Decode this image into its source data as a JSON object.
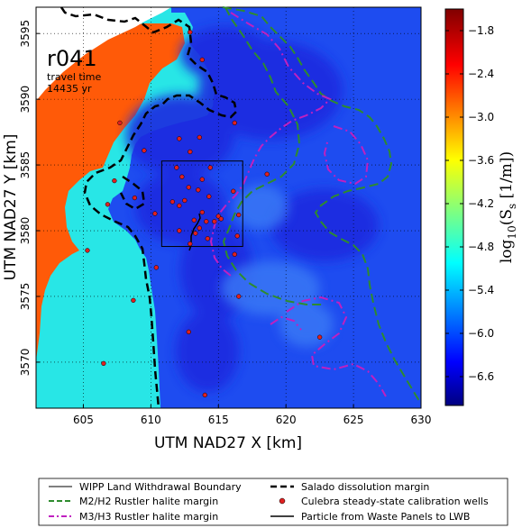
{
  "chart_data": {
    "type": "heatmap",
    "xlabel": "UTM NAD27 X [km]",
    "ylabel": "UTM NAD27 Y [km]",
    "xlim": [
      601.5,
      630
    ],
    "ylim": [
      3566.5,
      3597
    ],
    "xticks": [
      605,
      610,
      615,
      620,
      625,
      630
    ],
    "yticks": [
      3570,
      3575,
      3580,
      3585,
      3590,
      3595
    ],
    "grid": true,
    "realization": "r041",
    "travel_time_label": "travel time",
    "travel_time_value": "14435 yr",
    "colorbar": {
      "label": "log10(Ss [1/m])",
      "label_base": "log",
      "label_sub": "10",
      "label_body": "(S",
      "label_sub2": "s",
      "label_tail": " [1/m])",
      "range": [
        -7.0,
        -1.5
      ],
      "ticks": [
        -1.8,
        -2.4,
        -3.0,
        -3.6,
        -4.2,
        -4.8,
        -5.4,
        -6.0,
        -6.6
      ],
      "tick_labels": [
        "−1.8",
        "−2.4",
        "−3.0",
        "−3.6",
        "−4.2",
        "−4.8",
        "−5.4",
        "−6.0",
        "−6.6"
      ],
      "colormap": "jet"
    },
    "regions": [
      {
        "name": "orange",
        "value": -2.2
      },
      {
        "name": "cyan",
        "value": -5.0
      },
      {
        "name": "dark blue",
        "value": -6.6
      },
      {
        "name": "medium blue",
        "value": -6.1
      }
    ],
    "wipp_boundary": {
      "x": [
        610.8,
        616.8
      ],
      "y": [
        3578.8,
        3585.3
      ]
    },
    "wells": [
      {
        "x": 612.9,
        "y": 3595.1
      },
      {
        "x": 613.8,
        "y": 3593.0
      },
      {
        "x": 616.2,
        "y": 3588.2
      },
      {
        "x": 607.7,
        "y": 3588.2
      },
      {
        "x": 609.5,
        "y": 3586.1
      },
      {
        "x": 612.1,
        "y": 3587.0
      },
      {
        "x": 613.6,
        "y": 3587.1
      },
      {
        "x": 612.9,
        "y": 3586.0
      },
      {
        "x": 611.9,
        "y": 3584.8
      },
      {
        "x": 612.3,
        "y": 3584.1
      },
      {
        "x": 614.4,
        "y": 3584.8
      },
      {
        "x": 613.8,
        "y": 3583.9
      },
      {
        "x": 612.8,
        "y": 3583.3
      },
      {
        "x": 613.5,
        "y": 3583.1
      },
      {
        "x": 612.5,
        "y": 3582.3
      },
      {
        "x": 614.3,
        "y": 3582.6
      },
      {
        "x": 616.1,
        "y": 3583.0
      },
      {
        "x": 611.6,
        "y": 3582.2
      },
      {
        "x": 612.1,
        "y": 3581.9
      },
      {
        "x": 613.8,
        "y": 3581.4
      },
      {
        "x": 615.0,
        "y": 3581.1
      },
      {
        "x": 615.2,
        "y": 3580.9
      },
      {
        "x": 616.5,
        "y": 3581.2
      },
      {
        "x": 613.2,
        "y": 3580.8
      },
      {
        "x": 614.1,
        "y": 3580.7
      },
      {
        "x": 614.7,
        "y": 3580.7
      },
      {
        "x": 613.6,
        "y": 3580.2
      },
      {
        "x": 612.1,
        "y": 3580.0
      },
      {
        "x": 613.3,
        "y": 3579.8
      },
      {
        "x": 614.2,
        "y": 3579.4
      },
      {
        "x": 616.4,
        "y": 3579.6
      },
      {
        "x": 612.9,
        "y": 3579.0
      },
      {
        "x": 610.3,
        "y": 3581.3
      },
      {
        "x": 618.6,
        "y": 3584.3
      },
      {
        "x": 608.8,
        "y": 3582.5
      },
      {
        "x": 606.8,
        "y": 3582.0
      },
      {
        "x": 607.3,
        "y": 3583.8
      },
      {
        "x": 610.4,
        "y": 3577.2
      },
      {
        "x": 616.2,
        "y": 3578.2
      },
      {
        "x": 616.5,
        "y": 3575.0
      },
      {
        "x": 605.3,
        "y": 3578.5
      },
      {
        "x": 608.7,
        "y": 3574.7
      },
      {
        "x": 612.8,
        "y": 3572.3
      },
      {
        "x": 622.5,
        "y": 3571.9
      },
      {
        "x": 606.5,
        "y": 3569.9
      },
      {
        "x": 614.0,
        "y": 3567.5
      }
    ],
    "legend": {
      "placement": "bottom",
      "entries": [
        {
          "label": "WIPP Land Withdrawal Boundary",
          "style": "solid",
          "color": "#000000"
        },
        {
          "label": "M2/H2 Rustler halite margin",
          "style": "dashed",
          "color": "#2e8b2e"
        },
        {
          "label": "M3/H3 Rustler halite margin",
          "style": "dashdot",
          "color": "#c020c0"
        },
        {
          "label": "Salado dissolution margin",
          "style": "dashed",
          "color": "#000000"
        },
        {
          "label": "Culebra steady-state calibration wells",
          "style": "marker",
          "color": "#e02020"
        },
        {
          "label": "Particle from Waste Panels to LWB",
          "style": "solid",
          "color": "#000000"
        }
      ]
    }
  },
  "colors": {
    "orange": "#ff5a08",
    "cyan": "#28e6e6",
    "dark_blue": "#1a2ae0",
    "mid_blue": "#1e4cf0",
    "green": "#2e8b2e",
    "magenta": "#c020c0",
    "well": "#e02020"
  }
}
